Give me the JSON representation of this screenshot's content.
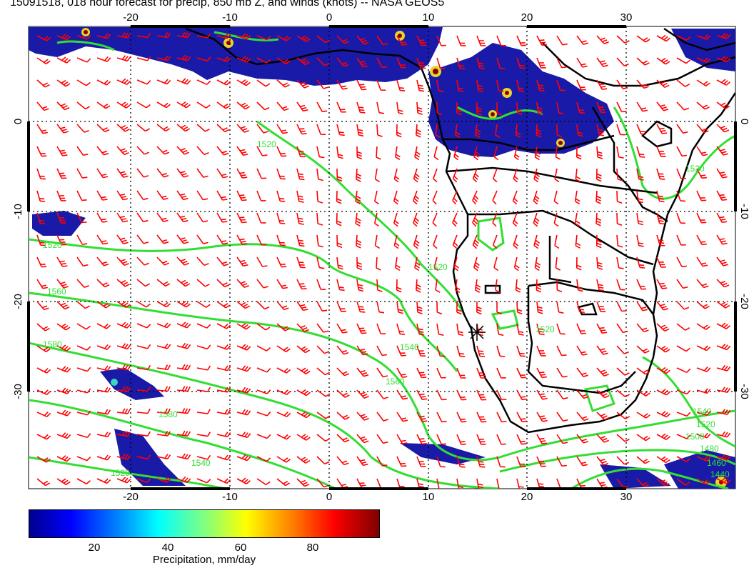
{
  "title": "15091518, 018 hour forecast for precip, 850 mb Z, and winds (knots) -- NASA GEOS5",
  "map": {
    "lon_ticks": [
      "-20",
      "-10",
      "0",
      "10",
      "20",
      "30"
    ],
    "lat_ticks": [
      "0",
      "-10",
      "-20",
      "-30"
    ],
    "contour_labels": [
      "1520",
      "1520",
      "1560",
      "1580",
      "1520",
      "1540",
      "1560",
      "1580",
      "1520",
      "1520",
      "1540",
      "1520",
      "1500",
      "1480",
      "1460",
      "1440",
      "1520",
      "1540"
    ],
    "colors": {
      "wind_barbs": "#ff0000",
      "contours": "#33dd33",
      "coastline": "#000000",
      "precip_low": "#00008f",
      "precip_high": "#7f0000"
    }
  },
  "colorbar": {
    "label": "Precipitation, mm/day",
    "ticks": [
      "20",
      "40",
      "60",
      "80"
    ],
    "range": [
      0,
      100
    ],
    "colormap": "jet"
  }
}
